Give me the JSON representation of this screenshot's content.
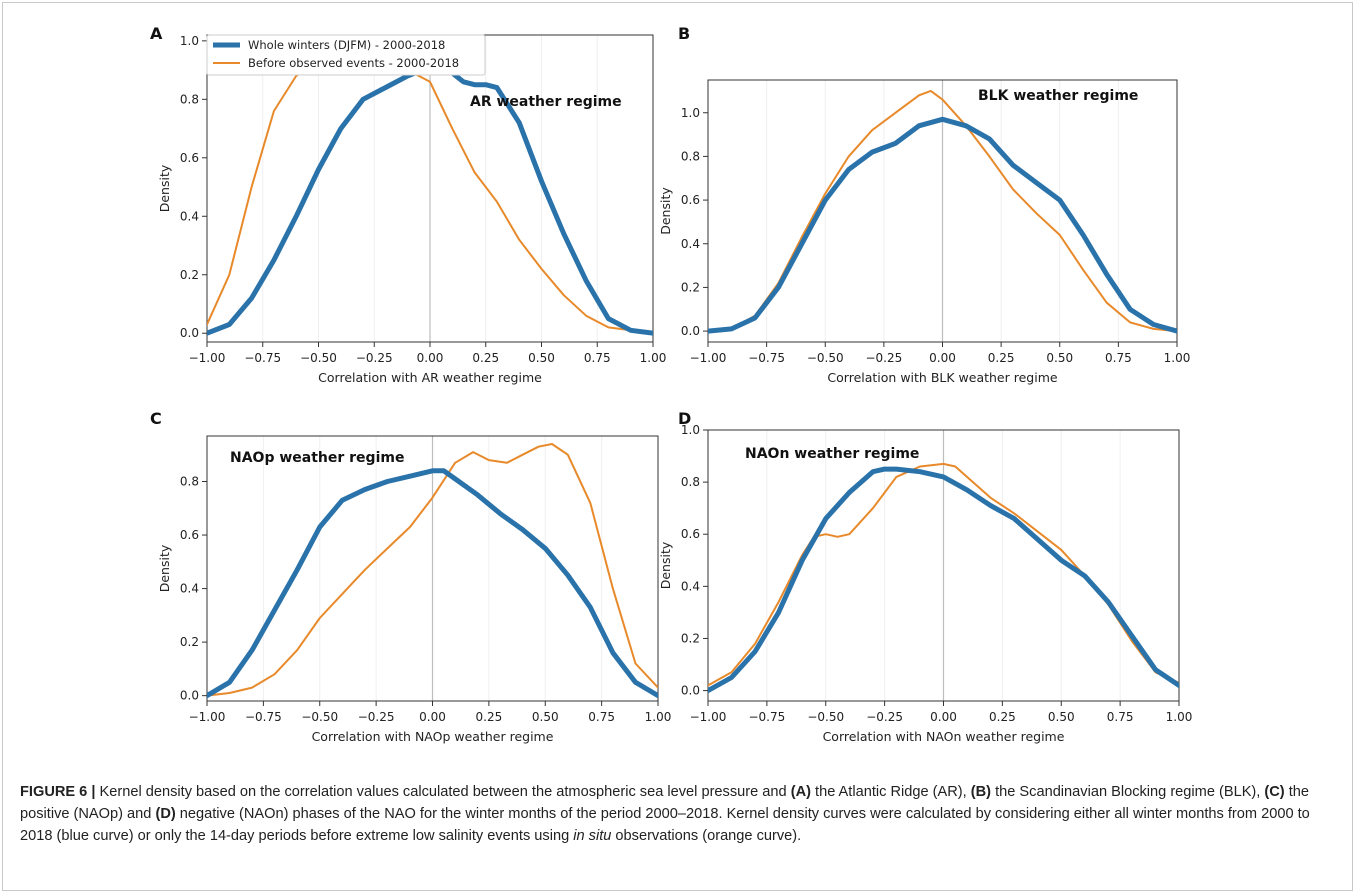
{
  "figure": {
    "caption": {
      "label": "FIGURE 6 |",
      "t1": " Kernel density based on the correlation values calculated between the atmospheric sea level pressure and ",
      "b1": "(A)",
      "t2": " the Atlantic Ridge (AR), ",
      "b2": "(B)",
      "t3": " the Scandinavian Blocking regime (BLK), ",
      "b3": "(C)",
      "t4": " the positive (NAOp) and ",
      "b4": "(D)",
      "t5": " negative (NAOn) phases of the NAO for the winter months of the period 2000–2018. Kernel density curves were calculated by considering either all winter months from 2000 to 2018 (blue curve) or only the 14-day periods before extreme low salinity events using ",
      "i1": "in situ",
      "t6": " observations (orange curve)."
    }
  },
  "colors": {
    "blue": "#2a72aa",
    "orange": "#e8892a"
  },
  "chart_data": [
    {
      "panel": "A",
      "type": "line",
      "annotation": "AR weather regime",
      "xlabel": "Correlation with AR weather regime",
      "ylabel": "Density",
      "xlim": [
        -1.0,
        1.0
      ],
      "ylim": [
        -0.03,
        1.02
      ],
      "xticks": [
        "−1.00",
        "−0.75",
        "−0.50",
        "−0.25",
        "0.00",
        "0.25",
        "0.50",
        "0.75",
        "1.00"
      ],
      "yticks": [
        "0.0",
        "0.2",
        "0.4",
        "0.6",
        "0.8",
        "1.0"
      ],
      "legend": {
        "position": "top-left",
        "entries": [
          "Whole winters (DJFM) - 2000-2018",
          "Before observed events - 2000-2018"
        ]
      },
      "series": [
        {
          "name": "Whole winters (DJFM) - 2000-2018",
          "color": "blue",
          "x": [
            -1.0,
            -0.9,
            -0.8,
            -0.7,
            -0.6,
            -0.5,
            -0.4,
            -0.3,
            -0.2,
            -0.1,
            0.0,
            0.05,
            0.1,
            0.15,
            0.2,
            0.25,
            0.3,
            0.4,
            0.5,
            0.6,
            0.7,
            0.8,
            0.9,
            1.0
          ],
          "y": [
            0.0,
            0.03,
            0.12,
            0.25,
            0.4,
            0.56,
            0.7,
            0.8,
            0.84,
            0.88,
            0.91,
            0.91,
            0.89,
            0.86,
            0.85,
            0.85,
            0.84,
            0.72,
            0.52,
            0.34,
            0.18,
            0.05,
            0.01,
            0.0
          ]
        },
        {
          "name": "Before observed events - 2000-2018",
          "color": "orange",
          "x": [
            -1.0,
            -0.9,
            -0.8,
            -0.7,
            -0.6,
            -0.5,
            -0.4,
            -0.3,
            -0.25,
            -0.2,
            -0.1,
            0.0,
            0.1,
            0.2,
            0.3,
            0.4,
            0.5,
            0.6,
            0.7,
            0.8,
            0.9,
            1.0
          ],
          "y": [
            0.03,
            0.2,
            0.5,
            0.76,
            0.88,
            0.93,
            0.95,
            0.96,
            0.96,
            0.93,
            0.9,
            0.86,
            0.7,
            0.55,
            0.45,
            0.32,
            0.22,
            0.13,
            0.06,
            0.02,
            0.01,
            0.0
          ]
        }
      ]
    },
    {
      "panel": "B",
      "type": "line",
      "annotation": "BLK weather regime",
      "xlabel": "Correlation with BLK weather regime",
      "ylabel": "Density",
      "xlim": [
        -1.0,
        1.0
      ],
      "ylim": [
        -0.05,
        1.15
      ],
      "xticks": [
        "−1.00",
        "−0.75",
        "−0.50",
        "−0.25",
        "0.00",
        "0.25",
        "0.50",
        "0.75",
        "1.00"
      ],
      "yticks": [
        "0.0",
        "0.2",
        "0.4",
        "0.6",
        "0.8",
        "1.0"
      ],
      "series": [
        {
          "name": "Whole winters (DJFM) - 2000-2018",
          "color": "blue",
          "x": [
            -1.0,
            -0.9,
            -0.8,
            -0.7,
            -0.6,
            -0.5,
            -0.4,
            -0.3,
            -0.2,
            -0.1,
            0.0,
            0.1,
            0.2,
            0.3,
            0.4,
            0.5,
            0.6,
            0.7,
            0.8,
            0.9,
            1.0
          ],
          "y": [
            0.0,
            0.01,
            0.06,
            0.2,
            0.4,
            0.6,
            0.74,
            0.82,
            0.86,
            0.94,
            0.97,
            0.94,
            0.88,
            0.76,
            0.68,
            0.6,
            0.44,
            0.26,
            0.1,
            0.03,
            0.0
          ]
        },
        {
          "name": "Before observed events - 2000-2018",
          "color": "orange",
          "x": [
            -1.0,
            -0.9,
            -0.8,
            -0.7,
            -0.6,
            -0.5,
            -0.4,
            -0.3,
            -0.2,
            -0.1,
            -0.05,
            0.0,
            0.1,
            0.2,
            0.3,
            0.4,
            0.5,
            0.6,
            0.7,
            0.8,
            0.9,
            1.0
          ],
          "y": [
            0.0,
            0.01,
            0.07,
            0.22,
            0.43,
            0.63,
            0.8,
            0.92,
            1.0,
            1.08,
            1.1,
            1.06,
            0.94,
            0.8,
            0.65,
            0.54,
            0.44,
            0.28,
            0.13,
            0.04,
            0.01,
            0.0
          ]
        }
      ]
    },
    {
      "panel": "C",
      "type": "line",
      "annotation": "NAOp weather regime",
      "xlabel": "Correlation with NAOp weather regime",
      "ylabel": "Density",
      "xlim": [
        -1.0,
        1.0
      ],
      "ylim": [
        -0.02,
        0.97
      ],
      "xticks": [
        "−1.00",
        "−0.75",
        "−0.50",
        "−0.25",
        "0.00",
        "0.25",
        "0.50",
        "0.75",
        "1.00"
      ],
      "yticks": [
        "0.0",
        "0.2",
        "0.4",
        "0.6",
        "0.8"
      ],
      "series": [
        {
          "name": "Whole winters (DJFM) - 2000-2018",
          "color": "blue",
          "x": [
            -1.0,
            -0.9,
            -0.8,
            -0.7,
            -0.6,
            -0.5,
            -0.4,
            -0.3,
            -0.2,
            -0.1,
            0.0,
            0.05,
            0.1,
            0.2,
            0.3,
            0.4,
            0.5,
            0.6,
            0.7,
            0.8,
            0.9,
            1.0
          ],
          "y": [
            0.0,
            0.05,
            0.17,
            0.32,
            0.47,
            0.63,
            0.73,
            0.77,
            0.8,
            0.82,
            0.84,
            0.84,
            0.81,
            0.75,
            0.68,
            0.62,
            0.55,
            0.45,
            0.33,
            0.16,
            0.05,
            0.0
          ]
        },
        {
          "name": "Before observed events - 2000-2018",
          "color": "orange",
          "x": [
            -1.0,
            -0.9,
            -0.8,
            -0.7,
            -0.6,
            -0.5,
            -0.4,
            -0.3,
            -0.2,
            -0.1,
            0.0,
            0.1,
            0.18,
            0.25,
            0.33,
            0.4,
            0.47,
            0.53,
            0.6,
            0.7,
            0.8,
            0.9,
            1.0
          ],
          "y": [
            0.0,
            0.01,
            0.03,
            0.08,
            0.17,
            0.29,
            0.38,
            0.47,
            0.55,
            0.63,
            0.74,
            0.87,
            0.91,
            0.88,
            0.87,
            0.9,
            0.93,
            0.94,
            0.9,
            0.72,
            0.4,
            0.12,
            0.03
          ]
        }
      ]
    },
    {
      "panel": "D",
      "type": "line",
      "annotation": "NAOn weather regime",
      "xlabel": "Correlation with NAOn weather regime",
      "ylabel": "Density",
      "xlim": [
        -1.0,
        1.0
      ],
      "ylim": [
        -0.04,
        1.0
      ],
      "xticks": [
        "−1.00",
        "−0.75",
        "−0.50",
        "−0.25",
        "0.00",
        "0.25",
        "0.50",
        "0.75",
        "1.00"
      ],
      "yticks": [
        "0.0",
        "0.2",
        "0.4",
        "0.6",
        "0.8",
        "1.0"
      ],
      "series": [
        {
          "name": "Whole winters (DJFM) - 2000-2018",
          "color": "blue",
          "x": [
            -1.0,
            -0.9,
            -0.8,
            -0.7,
            -0.6,
            -0.5,
            -0.4,
            -0.3,
            -0.25,
            -0.2,
            -0.1,
            0.0,
            0.1,
            0.2,
            0.3,
            0.4,
            0.5,
            0.6,
            0.7,
            0.8,
            0.9,
            1.0
          ],
          "y": [
            0.0,
            0.05,
            0.15,
            0.3,
            0.5,
            0.66,
            0.76,
            0.84,
            0.85,
            0.85,
            0.84,
            0.82,
            0.77,
            0.71,
            0.66,
            0.58,
            0.5,
            0.44,
            0.34,
            0.21,
            0.08,
            0.02
          ]
        },
        {
          "name": "Before observed events - 2000-2018",
          "color": "orange",
          "x": [
            -1.0,
            -0.9,
            -0.8,
            -0.7,
            -0.6,
            -0.55,
            -0.5,
            -0.45,
            -0.4,
            -0.3,
            -0.2,
            -0.1,
            0.0,
            0.05,
            0.1,
            0.2,
            0.3,
            0.4,
            0.5,
            0.6,
            0.7,
            0.8,
            0.9,
            1.0
          ],
          "y": [
            0.02,
            0.07,
            0.18,
            0.34,
            0.52,
            0.59,
            0.6,
            0.59,
            0.6,
            0.7,
            0.82,
            0.86,
            0.87,
            0.86,
            0.82,
            0.74,
            0.68,
            0.61,
            0.54,
            0.44,
            0.33,
            0.19,
            0.07,
            0.03
          ]
        }
      ]
    }
  ]
}
